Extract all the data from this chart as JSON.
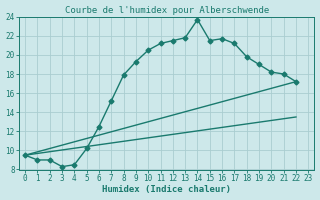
{
  "title": "Courbe de l'humidex pour Alberschwende",
  "xlabel": "Humidex (Indice chaleur)",
  "bg_color": "#cde8ea",
  "grid_color": "#aacdd0",
  "line_color": "#1a7a6e",
  "xlim": [
    -0.5,
    23.5
  ],
  "ylim": [
    8,
    24
  ],
  "yticks": [
    8,
    10,
    12,
    14,
    16,
    18,
    20,
    22,
    24
  ],
  "xticks": [
    0,
    1,
    2,
    3,
    4,
    5,
    6,
    7,
    8,
    9,
    10,
    11,
    12,
    13,
    14,
    15,
    16,
    17,
    18,
    19,
    20,
    21,
    22,
    23
  ],
  "series1_x": [
    0,
    1,
    2,
    3,
    4,
    5,
    6,
    7,
    8,
    9,
    10,
    11,
    12,
    13,
    14,
    15,
    16,
    17,
    18,
    19,
    20,
    21,
    22
  ],
  "series1_y": [
    9.5,
    9.0,
    9.0,
    8.3,
    8.5,
    10.2,
    12.5,
    15.2,
    17.9,
    19.3,
    20.5,
    21.2,
    21.5,
    21.8,
    23.7,
    21.5,
    21.7,
    21.2,
    19.8,
    19.0,
    18.2,
    18.0,
    17.2
  ],
  "series2_x": [
    0,
    22
  ],
  "series2_y": [
    9.5,
    17.2
  ],
  "series3_x": [
    0,
    22
  ],
  "series3_y": [
    9.5,
    13.5
  ],
  "marker": "D",
  "marker_size": 2.5,
  "line_width": 1.0,
  "title_fontsize": 6.5,
  "xlabel_fontsize": 6.5,
  "tick_labelsize": 5.5
}
